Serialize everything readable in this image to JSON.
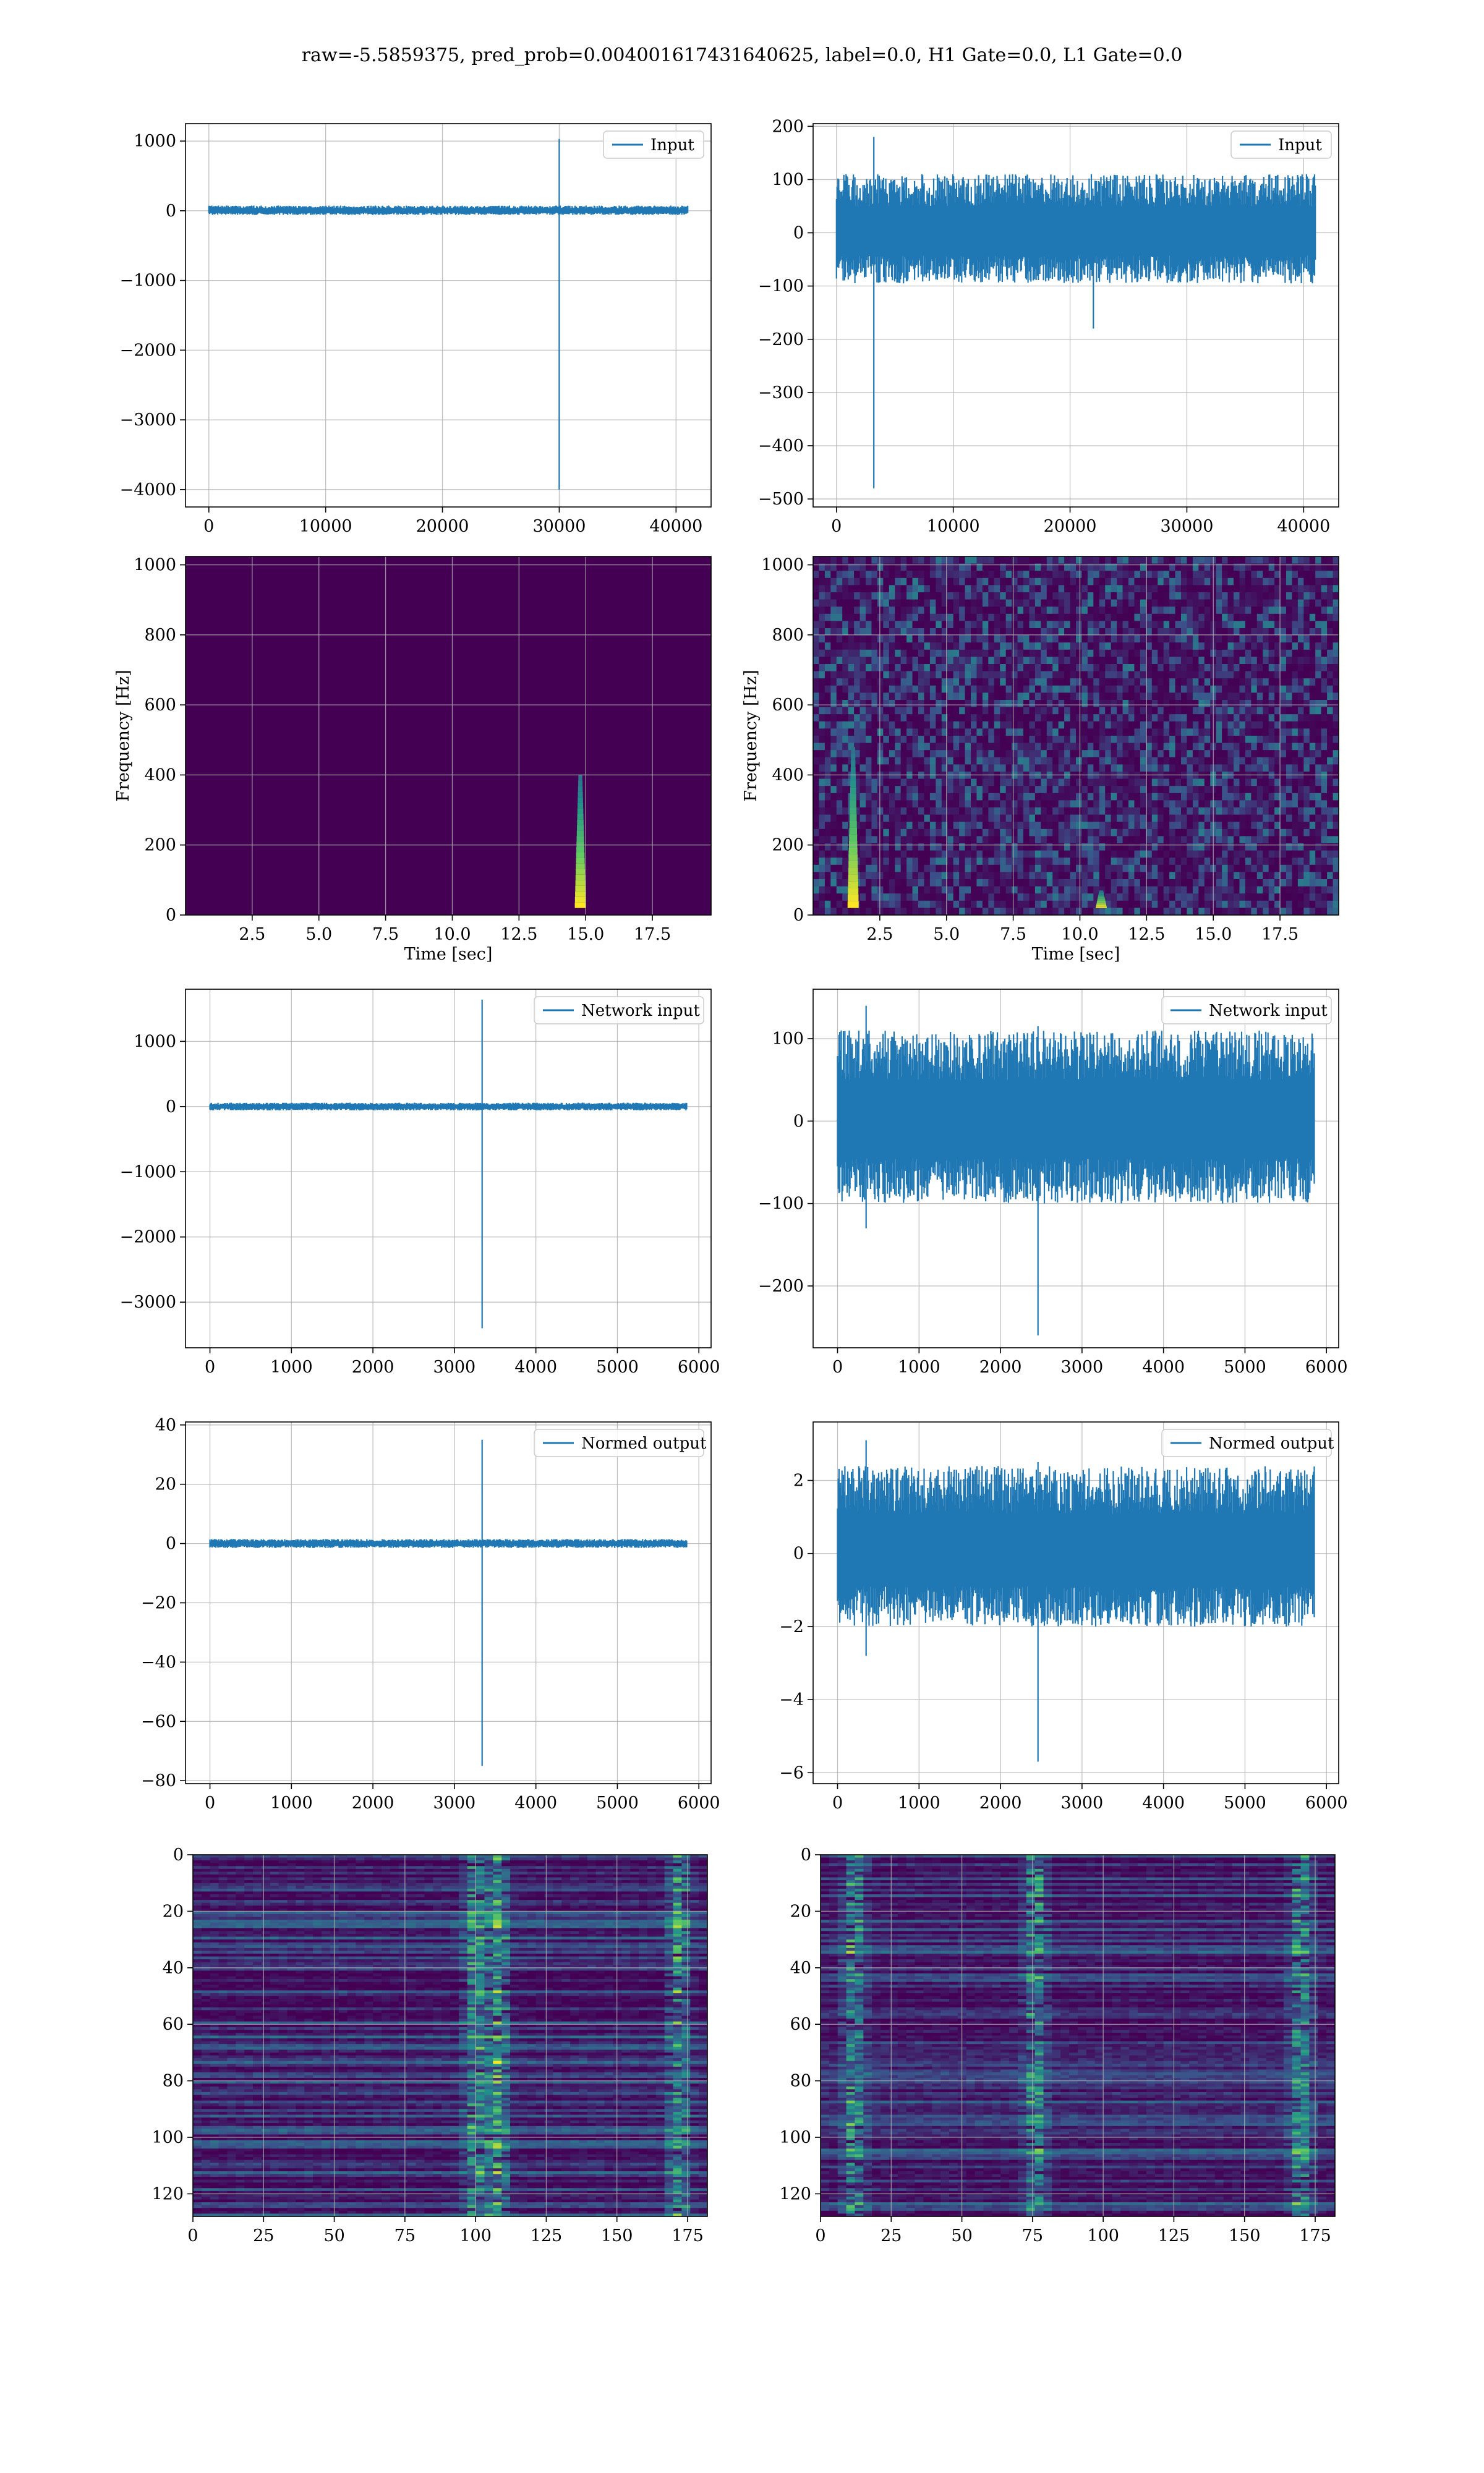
{
  "figure": {
    "suptitle": "raw=-5.5859375, pred_prob=0.004001617431640625, label=0.0, H1 Gate=0.0, L1 Gate=0.0"
  },
  "colors": {
    "line": "#1f77b4",
    "grid": "#b0b0b0",
    "spec_bg": "#440154"
  },
  "chart_data": [
    {
      "type": "line",
      "legend": "Input",
      "legend_position": "upper right",
      "grid": true,
      "xlim": [
        -2000,
        43000
      ],
      "ylim": [
        -4250,
        1250
      ],
      "xticks": [
        0,
        10000,
        20000,
        30000,
        40000
      ],
      "xtick_labels": [
        "0",
        "10000",
        "20000",
        "30000",
        "40000"
      ],
      "yticks": [
        -4000,
        -3000,
        -2000,
        -1000,
        0,
        1000
      ],
      "ytick_labels": [
        "−4000",
        "−3000",
        "−2000",
        "−1000",
        "0",
        "1000"
      ],
      "x_range": [
        0,
        41000
      ],
      "noise_band": [
        -60,
        75
      ],
      "spikes": [
        {
          "x": 30000,
          "max": 1030,
          "min": -4000
        }
      ]
    },
    {
      "type": "line",
      "legend": "Input",
      "legend_position": "upper right",
      "grid": true,
      "xlim": [
        -2000,
        43000
      ],
      "ylim": [
        -515,
        205
      ],
      "xticks": [
        0,
        10000,
        20000,
        30000,
        40000
      ],
      "xtick_labels": [
        "0",
        "10000",
        "20000",
        "30000",
        "40000"
      ],
      "yticks": [
        -500,
        -400,
        -300,
        -200,
        -100,
        0,
        100,
        200
      ],
      "ytick_labels": [
        "−500",
        "−400",
        "−300",
        "−200",
        "−100",
        "0",
        "100",
        "200"
      ],
      "x_range": [
        0,
        41000
      ],
      "noise_band": [
        -95,
        110
      ],
      "spikes": [
        {
          "x": 3200,
          "max": 180,
          "min": -480
        },
        {
          "x": 22000,
          "max": 60,
          "min": -180
        }
      ]
    },
    {
      "type": "heatmap",
      "grid": true,
      "xlabel": "Time [sec]",
      "ylabel": "Frequency [Hz]",
      "xlim": [
        0,
        19.7
      ],
      "ylim": [
        0,
        1024
      ],
      "xticks": [
        2.5,
        5.0,
        7.5,
        10.0,
        12.5,
        15.0,
        17.5
      ],
      "xtick_labels": [
        "2.5",
        "5.0",
        "7.5",
        "10.0",
        "12.5",
        "15.0",
        "17.5"
      ],
      "yticks": [
        0,
        200,
        400,
        600,
        800,
        1000
      ],
      "ytick_labels": [
        "0",
        "200",
        "400",
        "600",
        "800",
        "1000"
      ],
      "background": "uniform",
      "features": [
        {
          "t": 14.8,
          "f_low": 20,
          "f_high": 400
        }
      ]
    },
    {
      "type": "heatmap",
      "grid": true,
      "xlabel": "Time [sec]",
      "ylabel": "Frequency [Hz]",
      "xlim": [
        0,
        19.7
      ],
      "ylim": [
        0,
        1024
      ],
      "xticks": [
        2.5,
        5.0,
        7.5,
        10.0,
        12.5,
        15.0,
        17.5
      ],
      "xtick_labels": [
        "2.5",
        "5.0",
        "7.5",
        "10.0",
        "12.5",
        "15.0",
        "17.5"
      ],
      "yticks": [
        0,
        200,
        400,
        600,
        800,
        1000
      ],
      "ytick_labels": [
        "0",
        "200",
        "400",
        "600",
        "800",
        "1000"
      ],
      "background": "noise",
      "features": [
        {
          "t": 1.5,
          "f_low": 20,
          "f_high": 480
        },
        {
          "t": 10.8,
          "f_low": 20,
          "f_high": 70
        }
      ]
    },
    {
      "type": "line",
      "legend": "Network input",
      "legend_position": "upper right",
      "grid": true,
      "xlim": [
        -300,
        6150
      ],
      "ylim": [
        -3700,
        1800
      ],
      "xticks": [
        0,
        1000,
        2000,
        3000,
        4000,
        5000,
        6000
      ],
      "xtick_labels": [
        "0",
        "1000",
        "2000",
        "3000",
        "4000",
        "5000",
        "6000"
      ],
      "yticks": [
        -3000,
        -2000,
        -1000,
        0,
        1000
      ],
      "ytick_labels": [
        "−3000",
        "−2000",
        "−1000",
        "0",
        "1000"
      ],
      "x_range": [
        0,
        5850
      ],
      "noise_band": [
        -60,
        60
      ],
      "spikes": [
        {
          "x": 3340,
          "max": 1640,
          "min": -3400
        }
      ]
    },
    {
      "type": "line",
      "legend": "Network input",
      "legend_position": "upper right",
      "grid": true,
      "xlim": [
        -300,
        6150
      ],
      "ylim": [
        -275,
        160
      ],
      "xticks": [
        0,
        1000,
        2000,
        3000,
        4000,
        5000,
        6000
      ],
      "xtick_labels": [
        "0",
        "1000",
        "2000",
        "3000",
        "4000",
        "5000",
        "6000"
      ],
      "yticks": [
        -200,
        -100,
        0,
        100
      ],
      "ytick_labels": [
        "−200",
        "−100",
        "0",
        "100"
      ],
      "x_range": [
        0,
        5850
      ],
      "noise_band": [
        -100,
        110
      ],
      "spikes": [
        {
          "x": 350,
          "max": 140,
          "min": -130
        },
        {
          "x": 2460,
          "max": 115,
          "min": -260
        }
      ]
    },
    {
      "type": "line",
      "legend": "Normed output",
      "legend_position": "upper right",
      "grid": true,
      "xlim": [
        -300,
        6150
      ],
      "ylim": [
        -81,
        41
      ],
      "xticks": [
        0,
        1000,
        2000,
        3000,
        4000,
        5000,
        6000
      ],
      "xtick_labels": [
        "0",
        "1000",
        "2000",
        "3000",
        "4000",
        "5000",
        "6000"
      ],
      "yticks": [
        -80,
        -60,
        -40,
        -20,
        0,
        20,
        40
      ],
      "ytick_labels": [
        "−80",
        "−60",
        "−40",
        "−20",
        "0",
        "20",
        "40"
      ],
      "x_range": [
        0,
        5850
      ],
      "noise_band": [
        -1.5,
        1.5
      ],
      "spikes": [
        {
          "x": 3340,
          "max": 35,
          "min": -75
        }
      ]
    },
    {
      "type": "line",
      "legend": "Normed output",
      "legend_position": "upper right",
      "grid": true,
      "xlim": [
        -300,
        6150
      ],
      "ylim": [
        -6.3,
        3.6
      ],
      "xticks": [
        0,
        1000,
        2000,
        3000,
        4000,
        5000,
        6000
      ],
      "xtick_labels": [
        "0",
        "1000",
        "2000",
        "3000",
        "4000",
        "5000",
        "6000"
      ],
      "yticks": [
        -6,
        -4,
        -2,
        0,
        2
      ],
      "ytick_labels": [
        "−6",
        "−4",
        "−2",
        "0",
        "2"
      ],
      "x_range": [
        0,
        5850
      ],
      "noise_band": [
        -2,
        2.4
      ],
      "spikes": [
        {
          "x": 350,
          "max": 3.1,
          "min": -2.8
        },
        {
          "x": 2460,
          "max": 2.5,
          "min": -5.7
        }
      ]
    },
    {
      "type": "heatmap",
      "grid": true,
      "xlim": [
        0,
        182
      ],
      "ylim": [
        128,
        0
      ],
      "xticks": [
        0,
        25,
        50,
        75,
        100,
        125,
        150,
        175
      ],
      "xtick_labels": [
        "0",
        "25",
        "50",
        "75",
        "100",
        "125",
        "150",
        "175"
      ],
      "yticks": [
        0,
        20,
        40,
        60,
        80,
        100,
        120
      ],
      "ytick_labels": [
        "0",
        "20",
        "40",
        "60",
        "80",
        "100",
        "120"
      ],
      "background": "rows",
      "hot_columns": [
        100,
        108,
        172
      ]
    },
    {
      "type": "heatmap",
      "grid": true,
      "xlim": [
        0,
        182
      ],
      "ylim": [
        128,
        0
      ],
      "xticks": [
        0,
        25,
        50,
        75,
        100,
        125,
        150,
        175
      ],
      "xtick_labels": [
        "0",
        "25",
        "50",
        "75",
        "100",
        "125",
        "150",
        "175"
      ],
      "yticks": [
        0,
        20,
        40,
        60,
        80,
        100,
        120
      ],
      "ytick_labels": [
        "0",
        "20",
        "40",
        "60",
        "80",
        "100",
        "120"
      ],
      "background": "rows",
      "hot_columns": [
        12,
        76,
        170
      ]
    }
  ]
}
